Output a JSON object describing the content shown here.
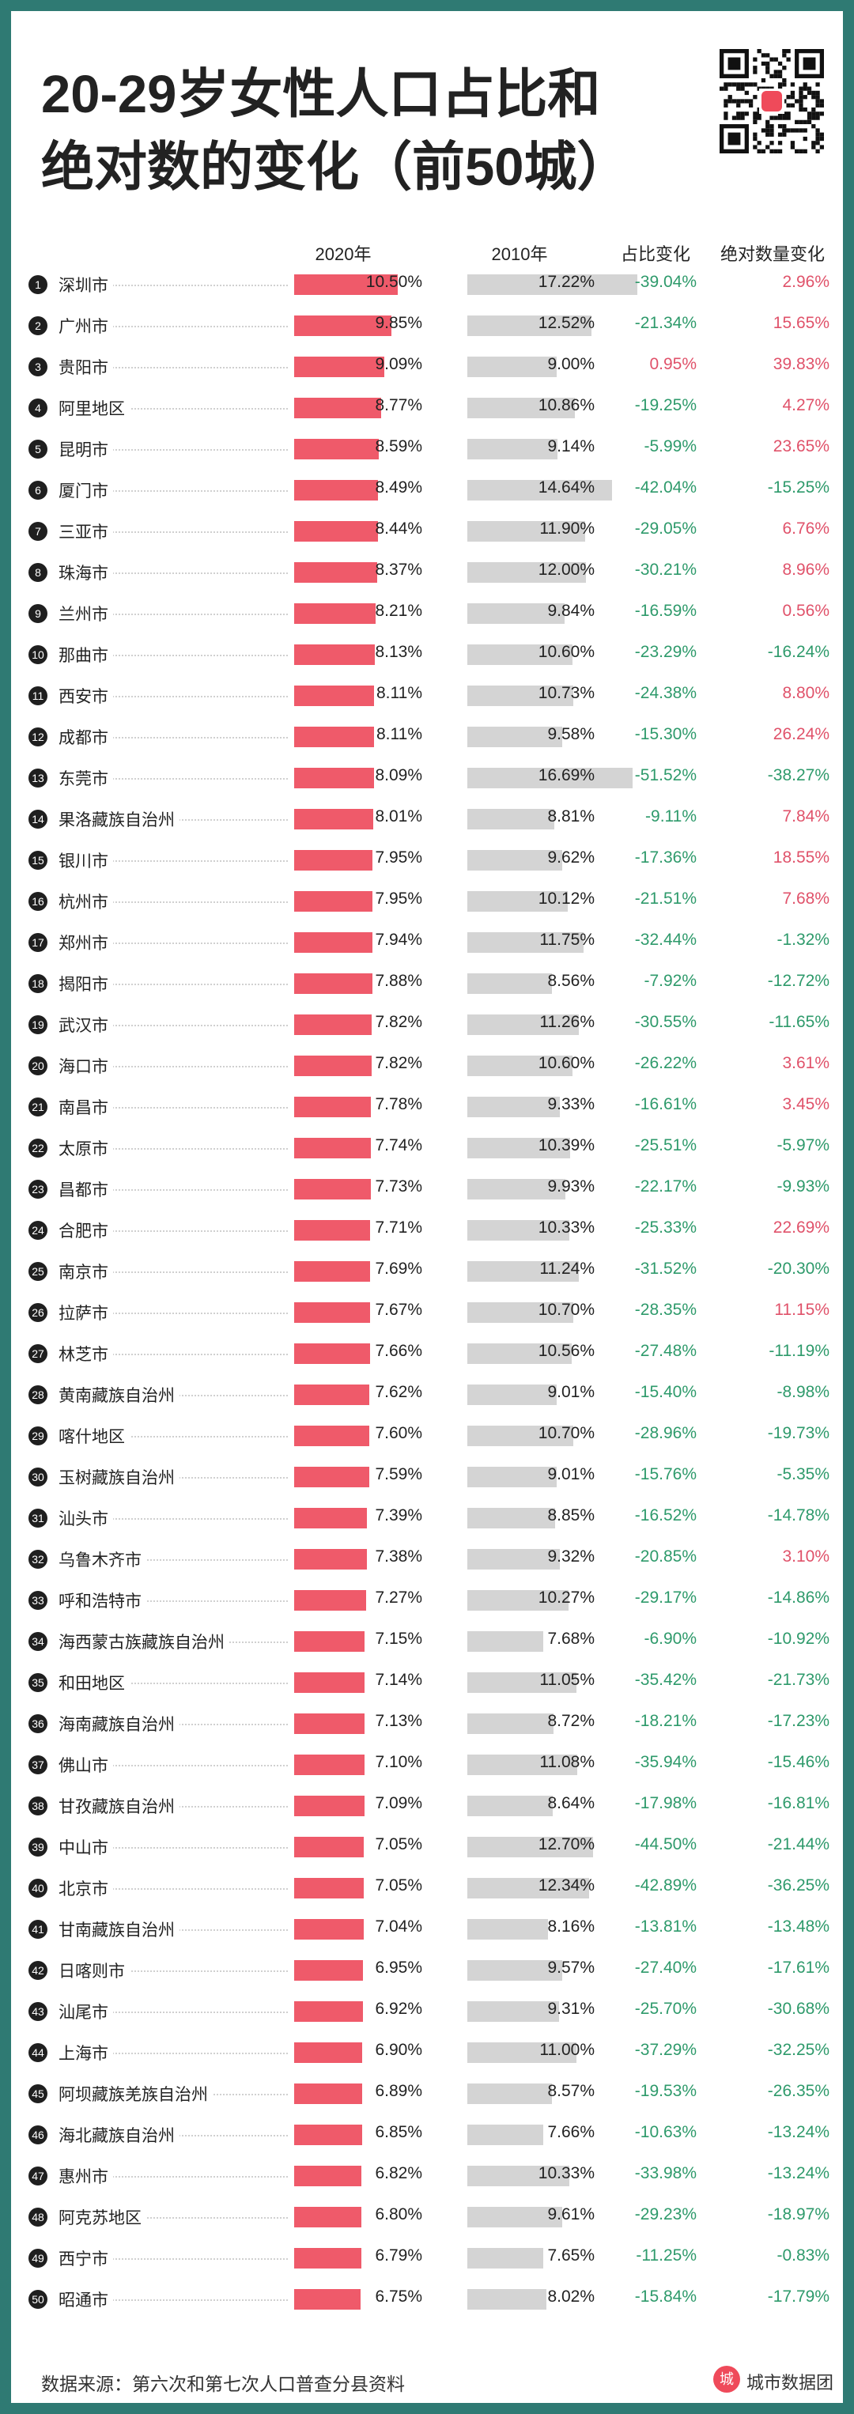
{
  "title": {
    "line1": "20-29岁女性人口占比和",
    "line2": "绝对数的变化（前50城）"
  },
  "headers": {
    "y2020": "2020年",
    "y2010": "2010年",
    "share_change": "占比变化",
    "abs_change": "绝对数量变化"
  },
  "colors": {
    "bar_2020": "#ef5a6a",
    "bar_2010": "#d4d4d4",
    "positive": "#e0526a",
    "negative": "#2e9a6b",
    "frame": "#2f7a73"
  },
  "chart_data": {
    "type": "table",
    "columns": [
      "城市",
      "2020年",
      "2010年",
      "占比变化",
      "绝对数量变化"
    ],
    "rows": [
      {
        "rank": "1",
        "city": "深圳市",
        "y2020": "10.50%",
        "y2010": "17.22%",
        "share": "-39.04%",
        "abs": "2.96%"
      },
      {
        "rank": "2",
        "city": "广州市",
        "y2020": "9.85%",
        "y2010": "12.52%",
        "share": "-21.34%",
        "abs": "15.65%"
      },
      {
        "rank": "3",
        "city": "贵阳市",
        "y2020": "9.09%",
        "y2010": "9.00%",
        "share": "0.95%",
        "abs": "39.83%"
      },
      {
        "rank": "4",
        "city": "阿里地区",
        "y2020": "8.77%",
        "y2010": "10.86%",
        "share": "-19.25%",
        "abs": "4.27%"
      },
      {
        "rank": "5",
        "city": "昆明市",
        "y2020": "8.59%",
        "y2010": "9.14%",
        "share": "-5.99%",
        "abs": "23.65%"
      },
      {
        "rank": "6",
        "city": "厦门市",
        "y2020": "8.49%",
        "y2010": "14.64%",
        "share": "-42.04%",
        "abs": "-15.25%"
      },
      {
        "rank": "7",
        "city": "三亚市",
        "y2020": "8.44%",
        "y2010": "11.90%",
        "share": "-29.05%",
        "abs": "6.76%"
      },
      {
        "rank": "8",
        "city": "珠海市",
        "y2020": "8.37%",
        "y2010": "12.00%",
        "share": "-30.21%",
        "abs": "8.96%"
      },
      {
        "rank": "9",
        "city": "兰州市",
        "y2020": "8.21%",
        "y2010": "9.84%",
        "share": "-16.59%",
        "abs": "0.56%"
      },
      {
        "rank": "10",
        "city": "那曲市",
        "y2020": "8.13%",
        "y2010": "10.60%",
        "share": "-23.29%",
        "abs": "-16.24%"
      },
      {
        "rank": "11",
        "city": "西安市",
        "y2020": "8.11%",
        "y2010": "10.73%",
        "share": "-24.38%",
        "abs": "8.80%"
      },
      {
        "rank": "12",
        "city": "成都市",
        "y2020": "8.11%",
        "y2010": "9.58%",
        "share": "-15.30%",
        "abs": "26.24%"
      },
      {
        "rank": "13",
        "city": "东莞市",
        "y2020": "8.09%",
        "y2010": "16.69%",
        "share": "-51.52%",
        "abs": "-38.27%"
      },
      {
        "rank": "14",
        "city": "果洛藏族自治州",
        "y2020": "8.01%",
        "y2010": "8.81%",
        "share": "-9.11%",
        "abs": "7.84%"
      },
      {
        "rank": "15",
        "city": "银川市",
        "y2020": "7.95%",
        "y2010": "9.62%",
        "share": "-17.36%",
        "abs": "18.55%"
      },
      {
        "rank": "16",
        "city": "杭州市",
        "y2020": "7.95%",
        "y2010": "10.12%",
        "share": "-21.51%",
        "abs": "7.68%"
      },
      {
        "rank": "17",
        "city": "郑州市",
        "y2020": "7.94%",
        "y2010": "11.75%",
        "share": "-32.44%",
        "abs": "-1.32%"
      },
      {
        "rank": "18",
        "city": "揭阳市",
        "y2020": "7.88%",
        "y2010": "8.56%",
        "share": "-7.92%",
        "abs": "-12.72%"
      },
      {
        "rank": "19",
        "city": "武汉市",
        "y2020": "7.82%",
        "y2010": "11.26%",
        "share": "-30.55%",
        "abs": "-11.65%"
      },
      {
        "rank": "20",
        "city": "海口市",
        "y2020": "7.82%",
        "y2010": "10.60%",
        "share": "-26.22%",
        "abs": "3.61%"
      },
      {
        "rank": "21",
        "city": "南昌市",
        "y2020": "7.78%",
        "y2010": "9.33%",
        "share": "-16.61%",
        "abs": "3.45%"
      },
      {
        "rank": "22",
        "city": "太原市",
        "y2020": "7.74%",
        "y2010": "10.39%",
        "share": "-25.51%",
        "abs": "-5.97%"
      },
      {
        "rank": "23",
        "city": "昌都市",
        "y2020": "7.73%",
        "y2010": "9.93%",
        "share": "-22.17%",
        "abs": "-9.93%"
      },
      {
        "rank": "24",
        "city": "合肥市",
        "y2020": "7.71%",
        "y2010": "10.33%",
        "share": "-25.33%",
        "abs": "22.69%"
      },
      {
        "rank": "25",
        "city": "南京市",
        "y2020": "7.69%",
        "y2010": "11.24%",
        "share": "-31.52%",
        "abs": "-20.30%"
      },
      {
        "rank": "26",
        "city": "拉萨市",
        "y2020": "7.67%",
        "y2010": "10.70%",
        "share": "-28.35%",
        "abs": "11.15%"
      },
      {
        "rank": "27",
        "city": "林芝市",
        "y2020": "7.66%",
        "y2010": "10.56%",
        "share": "-27.48%",
        "abs": "-11.19%"
      },
      {
        "rank": "28",
        "city": "黄南藏族自治州",
        "y2020": "7.62%",
        "y2010": "9.01%",
        "share": "-15.40%",
        "abs": "-8.98%"
      },
      {
        "rank": "29",
        "city": "喀什地区",
        "y2020": "7.60%",
        "y2010": "10.70%",
        "share": "-28.96%",
        "abs": "-19.73%"
      },
      {
        "rank": "30",
        "city": "玉树藏族自治州",
        "y2020": "7.59%",
        "y2010": "9.01%",
        "share": "-15.76%",
        "abs": "-5.35%"
      },
      {
        "rank": "31",
        "city": "汕头市",
        "y2020": "7.39%",
        "y2010": "8.85%",
        "share": "-16.52%",
        "abs": "-14.78%"
      },
      {
        "rank": "32",
        "city": "乌鲁木齐市",
        "y2020": "7.38%",
        "y2010": "9.32%",
        "share": "-20.85%",
        "abs": "3.10%"
      },
      {
        "rank": "33",
        "city": "呼和浩特市",
        "y2020": "7.27%",
        "y2010": "10.27%",
        "share": "-29.17%",
        "abs": "-14.86%"
      },
      {
        "rank": "34",
        "city": "海西蒙古族藏族自治州",
        "y2020": "7.15%",
        "y2010": "7.68%",
        "share": "-6.90%",
        "abs": "-10.92%"
      },
      {
        "rank": "35",
        "city": "和田地区",
        "y2020": "7.14%",
        "y2010": "11.05%",
        "share": "-35.42%",
        "abs": "-21.73%"
      },
      {
        "rank": "36",
        "city": "海南藏族自治州",
        "y2020": "7.13%",
        "y2010": "8.72%",
        "share": "-18.21%",
        "abs": "-17.23%"
      },
      {
        "rank": "37",
        "city": "佛山市",
        "y2020": "7.10%",
        "y2010": "11.08%",
        "share": "-35.94%",
        "abs": "-15.46%"
      },
      {
        "rank": "38",
        "city": "甘孜藏族自治州",
        "y2020": "7.09%",
        "y2010": "8.64%",
        "share": "-17.98%",
        "abs": "-16.81%"
      },
      {
        "rank": "39",
        "city": "中山市",
        "y2020": "7.05%",
        "y2010": "12.70%",
        "share": "-44.50%",
        "abs": "-21.44%"
      },
      {
        "rank": "40",
        "city": "北京市",
        "y2020": "7.05%",
        "y2010": "12.34%",
        "share": "-42.89%",
        "abs": "-36.25%"
      },
      {
        "rank": "41",
        "city": "甘南藏族自治州",
        "y2020": "7.04%",
        "y2010": "8.16%",
        "share": "-13.81%",
        "abs": "-13.48%"
      },
      {
        "rank": "42",
        "city": "日喀则市",
        "y2020": "6.95%",
        "y2010": "9.57%",
        "share": "-27.40%",
        "abs": "-17.61%"
      },
      {
        "rank": "43",
        "city": "汕尾市",
        "y2020": "6.92%",
        "y2010": "9.31%",
        "share": "-25.70%",
        "abs": "-30.68%"
      },
      {
        "rank": "44",
        "city": "上海市",
        "y2020": "6.90%",
        "y2010": "11.00%",
        "share": "-37.29%",
        "abs": "-32.25%"
      },
      {
        "rank": "45",
        "city": "阿坝藏族羌族自治州",
        "y2020": "6.89%",
        "y2010": "8.57%",
        "share": "-19.53%",
        "abs": "-26.35%"
      },
      {
        "rank": "46",
        "city": "海北藏族自治州",
        "y2020": "6.85%",
        "y2010": "7.66%",
        "share": "-10.63%",
        "abs": "-13.24%"
      },
      {
        "rank": "47",
        "city": "惠州市",
        "y2020": "6.82%",
        "y2010": "10.33%",
        "share": "-33.98%",
        "abs": "-13.24%"
      },
      {
        "rank": "48",
        "city": "阿克苏地区",
        "y2020": "6.80%",
        "y2010": "9.61%",
        "share": "-29.23%",
        "abs": "-18.97%"
      },
      {
        "rank": "49",
        "city": "西宁市",
        "y2020": "6.79%",
        "y2010": "7.65%",
        "share": "-11.25%",
        "abs": "-0.83%"
      },
      {
        "rank": "50",
        "city": "昭通市",
        "y2020": "6.75%",
        "y2010": "8.02%",
        "share": "-15.84%",
        "abs": "-17.79%"
      }
    ]
  },
  "footer": {
    "source": "数据来源：第六次和第七次人口普查分县资料",
    "brand": "城市数据团",
    "brand_logo": "城"
  },
  "icons": {
    "qr": "qr-code-icon",
    "brand": "city-data-logo-icon"
  }
}
